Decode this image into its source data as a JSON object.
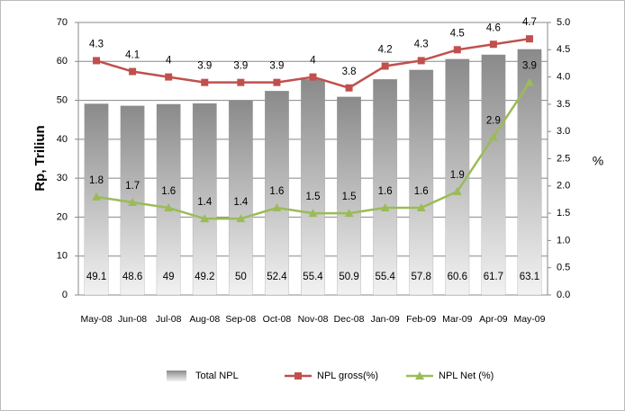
{
  "chart_data": {
    "type": "bar",
    "y_label": "Rp, Triliun",
    "y2_label": "%",
    "categories": [
      "May-08",
      "Jun-08",
      "Jul-08",
      "Aug-08",
      "Sep-08",
      "Oct-08",
      "Nov-08",
      "Dec-08",
      "Jan-09",
      "Feb-09",
      "Mar-09",
      "Apr-09",
      "May-09"
    ],
    "series": [
      {
        "name": "Total NPL",
        "type": "bar",
        "color": "#9a9a9a",
        "values": [
          49.1,
          48.6,
          49,
          49.2,
          50,
          52.4,
          55.4,
          50.9,
          55.4,
          57.8,
          60.6,
          61.7,
          63.1
        ]
      },
      {
        "name": "NPL gross(%)",
        "type": "line",
        "axis": "y2",
        "color": "#c0504d",
        "values": [
          4.3,
          4.1,
          4,
          3.9,
          3.9,
          3.9,
          4,
          3.8,
          4.2,
          4.3,
          4.5,
          4.6,
          4.7
        ]
      },
      {
        "name": "NPL Net (%)",
        "type": "line",
        "axis": "y2",
        "color": "#9bbb59",
        "values": [
          1.8,
          1.7,
          1.6,
          1.4,
          1.4,
          1.6,
          1.5,
          1.5,
          1.6,
          1.6,
          1.9,
          2.9,
          3.9
        ]
      }
    ],
    "ylim": [
      0,
      70
    ],
    "yticks": [
      0,
      10,
      20,
      30,
      40,
      50,
      60,
      70
    ],
    "y2lim": [
      0,
      5
    ],
    "y2ticks": [
      {
        "value": 0,
        "label": "0.0"
      },
      {
        "value": 0.5,
        "label": "0.5"
      },
      {
        "value": 1,
        "label": "1.0"
      },
      {
        "value": 1.5,
        "label": "1.5"
      },
      {
        "value": 2,
        "label": "2.0"
      },
      {
        "value": 2.5,
        "label": "2.5"
      },
      {
        "value": 3,
        "label": "3.0"
      },
      {
        "value": 3.5,
        "label": "3.5"
      },
      {
        "value": 4,
        "label": "4.0"
      },
      {
        "value": 4.5,
        "label": "4.5"
      },
      {
        "value": 5,
        "label": "5.0"
      }
    ],
    "grid": true
  }
}
